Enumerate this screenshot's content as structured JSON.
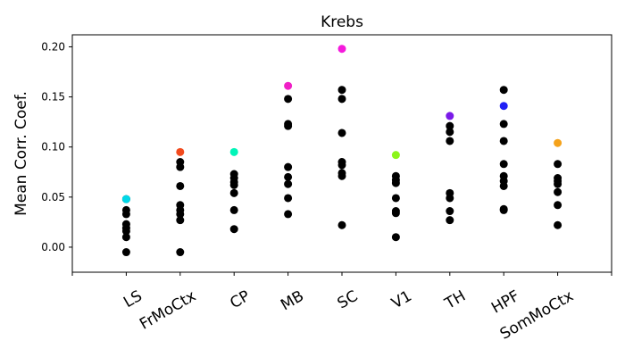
{
  "chart_data": {
    "type": "scatter",
    "title": "Krebs",
    "xlabel": "",
    "ylabel": "Mean Corr. Coef.",
    "categories": [
      "LS",
      "FrMoCtx",
      "CP",
      "MB",
      "SC",
      "V1",
      "TH",
      "HPF",
      "SomMoCtx"
    ],
    "ylim": [
      -0.025,
      0.212
    ],
    "yticks": [
      0.0,
      0.05,
      0.1,
      0.15,
      0.2
    ],
    "ytick_labels": [
      "0.00",
      "0.05",
      "0.10",
      "0.15",
      "0.20"
    ],
    "grid": false,
    "legend": "none",
    "series": [
      {
        "category": "LS",
        "highlight_color": "#00d8e8",
        "highlight": 0.048,
        "points": [
          0.048,
          0.037,
          0.033,
          0.023,
          0.019,
          0.016,
          0.01,
          -0.005
        ]
      },
      {
        "category": "FrMoCtx",
        "highlight_color": "#f24a1d",
        "highlight": 0.095,
        "points": [
          0.085,
          0.08,
          0.061,
          0.042,
          0.037,
          0.033,
          0.027,
          -0.005
        ]
      },
      {
        "category": "CP",
        "highlight_color": "#00f5b8",
        "highlight": 0.095,
        "points": [
          0.073,
          0.069,
          0.065,
          0.062,
          0.054,
          0.037,
          0.018
        ]
      },
      {
        "category": "MB",
        "highlight_color": "#f01fc6",
        "highlight": 0.161,
        "points": [
          0.148,
          0.123,
          0.121,
          0.08,
          0.07,
          0.063,
          0.049,
          0.033
        ]
      },
      {
        "category": "SC",
        "highlight_color": "#f51adc",
        "highlight": 0.198,
        "points": [
          0.157,
          0.148,
          0.114,
          0.085,
          0.082,
          0.074,
          0.071,
          0.022
        ]
      },
      {
        "category": "V1",
        "highlight_color": "#8cf51a",
        "highlight": 0.092,
        "points": [
          0.071,
          0.067,
          0.064,
          0.049,
          0.036,
          0.034,
          0.01
        ]
      },
      {
        "category": "TH",
        "highlight_color": "#7a1ae8",
        "highlight": 0.131,
        "points": [
          0.121,
          0.115,
          0.106,
          0.054,
          0.049,
          0.036,
          0.027
        ]
      },
      {
        "category": "HPF",
        "highlight_color": "#1f1ff5",
        "highlight": 0.141,
        "points": [
          0.157,
          0.123,
          0.106,
          0.083,
          0.071,
          0.066,
          0.061,
          0.038,
          0.037
        ]
      },
      {
        "category": "SomMoCtx",
        "highlight_color": "#f5a21a",
        "highlight": 0.104,
        "points": [
          0.083,
          0.069,
          0.066,
          0.063,
          0.055,
          0.042,
          0.022
        ]
      }
    ]
  }
}
